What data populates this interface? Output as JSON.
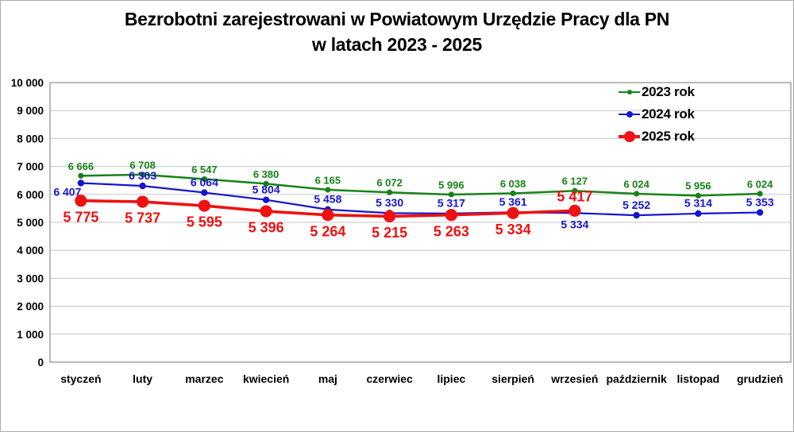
{
  "title": {
    "line1": "Bezrobotni zarejestrowani w Powiatowym Urzędzie Pracy dla PN",
    "line2": "w latach 2023 - 2025"
  },
  "chart_data": {
    "type": "line",
    "categories": [
      "styczeń",
      "luty",
      "marzec",
      "kwiecień",
      "maj",
      "czerwiec",
      "lipiec",
      "sierpień",
      "wrzesień",
      "październik",
      "listopad",
      "grudzień"
    ],
    "series": [
      {
        "name": "2023 rok",
        "color": "#168316",
        "values": [
          6666,
          6708,
          6547,
          6380,
          6165,
          6072,
          5996,
          6038,
          6127,
          6024,
          5956,
          6024
        ],
        "line_width": 2.5,
        "marker_r": 3.6,
        "label_size": 13,
        "label_pos": [
          "above",
          "above",
          "above",
          "above",
          "above",
          "above",
          "above",
          "above",
          "above",
          "above",
          "above",
          "above"
        ]
      },
      {
        "name": "2024 rok",
        "color": "#1515CC",
        "values": [
          6407,
          6303,
          6064,
          5804,
          5458,
          5330,
          5317,
          5361,
          5334,
          5252,
          5314,
          5353
        ],
        "line_width": 2.2,
        "marker_r": 4.2,
        "label_size": 14,
        "label_pos": [
          "below-left",
          "above",
          "above",
          "above",
          "above",
          "above",
          "above",
          "above",
          "below",
          "above",
          "above",
          "above"
        ]
      },
      {
        "name": "2025 rok",
        "color": "#EE1111",
        "values": [
          5775,
          5737,
          5595,
          5396,
          5264,
          5215,
          5263,
          5334,
          5417
        ],
        "line_width": 3.6,
        "marker_r": 7.6,
        "label_size": 18,
        "label_pos": [
          "below",
          "below",
          "below",
          "below",
          "below",
          "below",
          "below",
          "below",
          "above"
        ]
      }
    ],
    "ylim": [
      0,
      10000
    ],
    "ytick_step": 1000,
    "y_ticks": [
      "0",
      "1 000",
      "2 000",
      "3 000",
      "4 000",
      "5 000",
      "6 000",
      "7 000",
      "8 000",
      "9 000",
      "10 000"
    ],
    "grid": true,
    "gridline_color": "#c6c6c6",
    "plot_border_color": "#8c8c8c",
    "legend_position": "top-right"
  }
}
